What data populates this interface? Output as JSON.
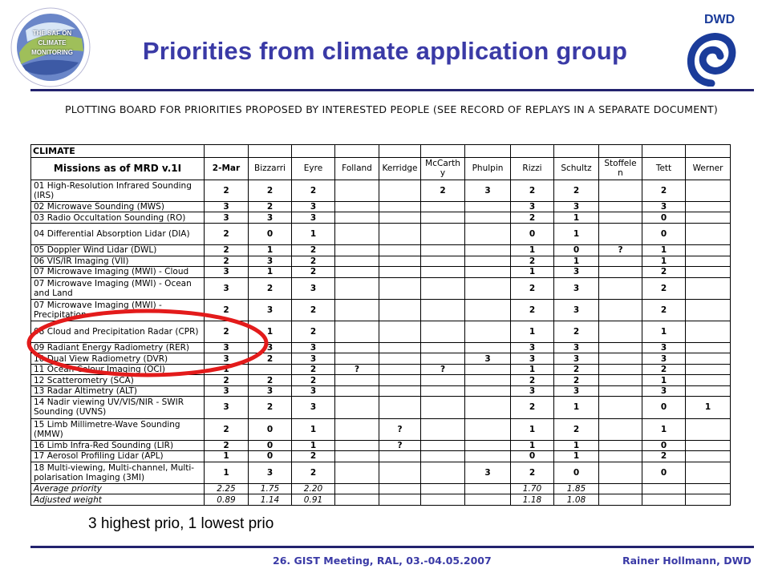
{
  "header": {
    "title": "Priorities from climate application group",
    "left_logo": {
      "icon": "cm-saf-globe-logo",
      "text": "THE SAF ON CLIMATE MONITORING",
      "ring_text": "SATELLITE APPLICATION FACILITY ON CLIMATE MONITORING"
    },
    "right_logo": {
      "icon": "dwd-logo",
      "text": "DWD"
    }
  },
  "board": {
    "heading": "PLOTTING BOARD FOR PRIORITIES PROPOSED BY INTERESTED PEOPLE (SEE RECORD OF REPLAYS IN A SEPARATE DOCUMENT)",
    "section_label": "CLIMATE",
    "columns": [
      "Missions as of MRD v.1I",
      "2-Mar",
      "Bizzarri",
      "Eyre",
      "Folland",
      "Kerridge",
      "McCarthy",
      "Phulpin",
      "Rizzi",
      "Schultz",
      "Stoffelen",
      "Tett",
      "Werner"
    ],
    "columns_display": [
      "Missions as of MRD v.1I",
      "2-Mar",
      "Bizzarri",
      "Eyre",
      "Folland",
      "Kerridge",
      "McCarth y",
      "Phulpin",
      "Rizzi",
      "Schultz",
      "Stoffele n",
      "Tett",
      "Werner"
    ],
    "rows": [
      [
        "01 High-Resolution Infrared Sounding (IRS)",
        "2",
        "2",
        "2",
        "",
        "",
        "2",
        "3",
        "2",
        "2",
        "",
        "2",
        ""
      ],
      [
        "02 Microwave Sounding (MWS)",
        "3",
        "2",
        "3",
        "",
        "",
        "",
        "",
        "3",
        "3",
        "",
        "3",
        ""
      ],
      [
        "03 Radio Occultation Sounding (RO)",
        "3",
        "3",
        "3",
        "",
        "",
        "",
        "",
        "2",
        "1",
        "",
        "0",
        ""
      ],
      [
        "04 Differential Absorption Lidar (DIA)",
        "2",
        "0",
        "1",
        "",
        "",
        "",
        "",
        "0",
        "1",
        "",
        "0",
        ""
      ],
      [
        "05 Doppler Wind Lidar (DWL)",
        "2",
        "1",
        "2",
        "",
        "",
        "",
        "",
        "1",
        "0",
        "?",
        "1",
        ""
      ],
      [
        "06 VIS/IR Imaging (VII)",
        "2",
        "3",
        "2",
        "",
        "",
        "",
        "",
        "2",
        "1",
        "",
        "1",
        ""
      ],
      [
        "07 Microwave Imaging (MWI) - Cloud",
        "3",
        "1",
        "2",
        "",
        "",
        "",
        "",
        "1",
        "3",
        "",
        "2",
        ""
      ],
      [
        "07 Microwave Imaging (MWI) - Ocean and Land",
        "3",
        "2",
        "3",
        "",
        "",
        "",
        "",
        "2",
        "3",
        "",
        "2",
        ""
      ],
      [
        "07 Microwave Imaging (MWI) - Precipitation",
        "2",
        "3",
        "2",
        "",
        "",
        "",
        "",
        "2",
        "3",
        "",
        "2",
        ""
      ],
      [
        "08 Cloud and Precipitation Radar (CPR)",
        "2",
        "1",
        "2",
        "",
        "",
        "",
        "",
        "1",
        "2",
        "",
        "1",
        ""
      ],
      [
        "09 Radiant Energy Radiometry (RER)",
        "3",
        "3",
        "3",
        "",
        "",
        "",
        "",
        "3",
        "3",
        "",
        "3",
        ""
      ],
      [
        "10 Dual View Radiometry (DVR)",
        "3",
        "2",
        "3",
        "",
        "",
        "",
        "3",
        "3",
        "3",
        "",
        "3",
        ""
      ],
      [
        "11 Ocean Colour Imaging (OCI)",
        "1",
        "",
        "2",
        "?",
        "",
        "?",
        "",
        "1",
        "2",
        "",
        "2",
        ""
      ],
      [
        "12 Scatterometry (SCA)",
        "2",
        "2",
        "2",
        "",
        "",
        "",
        "",
        "2",
        "2",
        "",
        "1",
        ""
      ],
      [
        "13 Radar Altimetry (ALT)",
        "3",
        "3",
        "3",
        "",
        "",
        "",
        "",
        "3",
        "3",
        "",
        "3",
        ""
      ],
      [
        "14 Nadir viewing UV/VIS/NIR - SWIR Sounding (UVNS)",
        "3",
        "2",
        "3",
        "",
        "",
        "",
        "",
        "2",
        "1",
        "",
        "0",
        "1"
      ],
      [
        "15 Limb Millimetre-Wave Sounding (MMW)",
        "2",
        "0",
        "1",
        "",
        "?",
        "",
        "",
        "1",
        "2",
        "",
        "1",
        ""
      ],
      [
        "16 Limb Infra-Red Sounding (LIR)",
        "2",
        "0",
        "1",
        "",
        "?",
        "",
        "",
        "1",
        "1",
        "",
        "0",
        ""
      ],
      [
        "17 Aerosol Profiling Lidar (APL)",
        "1",
        "0",
        "2",
        "",
        "",
        "",
        "",
        "0",
        "1",
        "",
        "2",
        ""
      ],
      [
        "18 Multi-viewing, Multi-channel, Multi-polarisation Imaging (3MI)",
        "1",
        "3",
        "2",
        "",
        "",
        "",
        "3",
        "2",
        "0",
        "",
        "0",
        ""
      ]
    ],
    "footer_rows": [
      [
        "Average priority",
        "2.25",
        "1.75",
        "2.20",
        "",
        "",
        "",
        "",
        "1.70",
        "1.85",
        "",
        "",
        ""
      ],
      [
        "Adjusted weight",
        "0.89",
        "1.14",
        "0.91",
        "",
        "",
        "",
        "",
        "1.18",
        "1.08",
        "",
        "",
        ""
      ]
    ],
    "highlight": {
      "color": "#e31b1b"
    }
  },
  "note": "3 highest prio, 1 lowest prio",
  "footer": {
    "left": "26. GIST Meeting, RAL, 03.-04.05.2007",
    "right": "Rainer Hollmann, DWD"
  },
  "colors": {
    "title": "#3a3aa6",
    "rule": "#23236e",
    "highlight": "#e31b1b"
  }
}
